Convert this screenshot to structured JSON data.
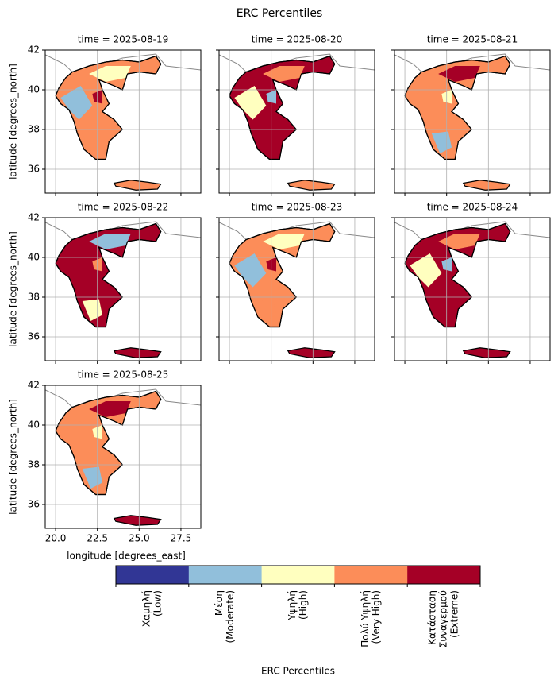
{
  "chart_data": {
    "type": "map",
    "title": "ERC Percentiles",
    "panels": [
      "time = 2025-08-19",
      "time = 2025-08-20",
      "time = 2025-08-21",
      "time = 2025-08-22",
      "time = 2025-08-23",
      "time = 2025-08-24",
      "time = 2025-08-25"
    ],
    "xlabel": "longitude [degrees_east]",
    "ylabel": "latitude [degrees_north]",
    "xlim": [
      19.38,
      28.69
    ],
    "ylim": [
      34.8,
      42
    ],
    "xticks": [
      {
        "value": 20,
        "label": "20.0"
      },
      22.5,
      {
        "value": 25,
        "label": "25.0"
      },
      27.5
    ],
    "yticks": [
      36,
      38,
      40,
      42
    ],
    "grid": true,
    "colorbar": {
      "label": "ERC Percentiles",
      "categories": [
        [
          "Χαμηλή",
          "(Low)"
        ],
        [
          "Μέση",
          "(Moderate)"
        ],
        [
          "Υψηλή",
          "(High)"
        ],
        [
          "Πολύ Υψηλή",
          "(Very High)"
        ],
        [
          "Κατάσταση",
          "Συναγερμού",
          "(Extreme)"
        ]
      ],
      "colors": [
        "#313695",
        "#91bfdb",
        "#ffffbf",
        "#fc8d59",
        "#a50026"
      ]
    }
  }
}
